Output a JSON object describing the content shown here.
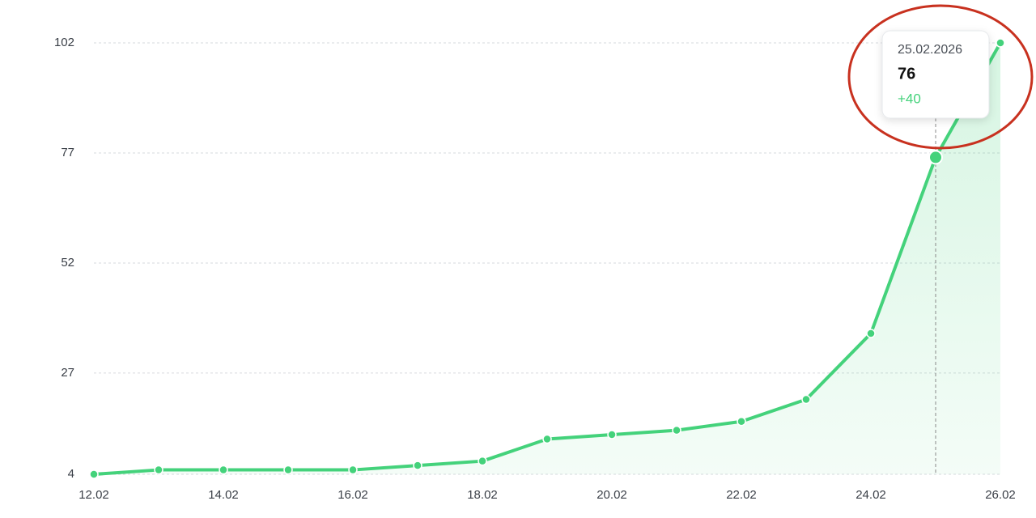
{
  "chart_data": {
    "type": "line",
    "categories": [
      "12.02",
      null,
      "14.02",
      null,
      "16.02",
      null,
      "18.02",
      null,
      "20.02",
      null,
      "22.02",
      null,
      "24.02",
      null,
      "26.02"
    ],
    "series": [
      {
        "color": "#44d27b",
        "values": [
          4,
          5,
          5,
          5,
          5,
          6,
          7,
          12,
          13,
          14,
          16,
          21,
          36,
          76,
          102
        ]
      }
    ],
    "ylim": [
      4,
      102
    ],
    "yticks": [
      4,
      27,
      52,
      77,
      102
    ],
    "grid": true,
    "tooltip": {
      "date": "25.02.2026",
      "value": 76,
      "change": {
        "value": 40,
        "label": "+40"
      }
    }
  }
}
